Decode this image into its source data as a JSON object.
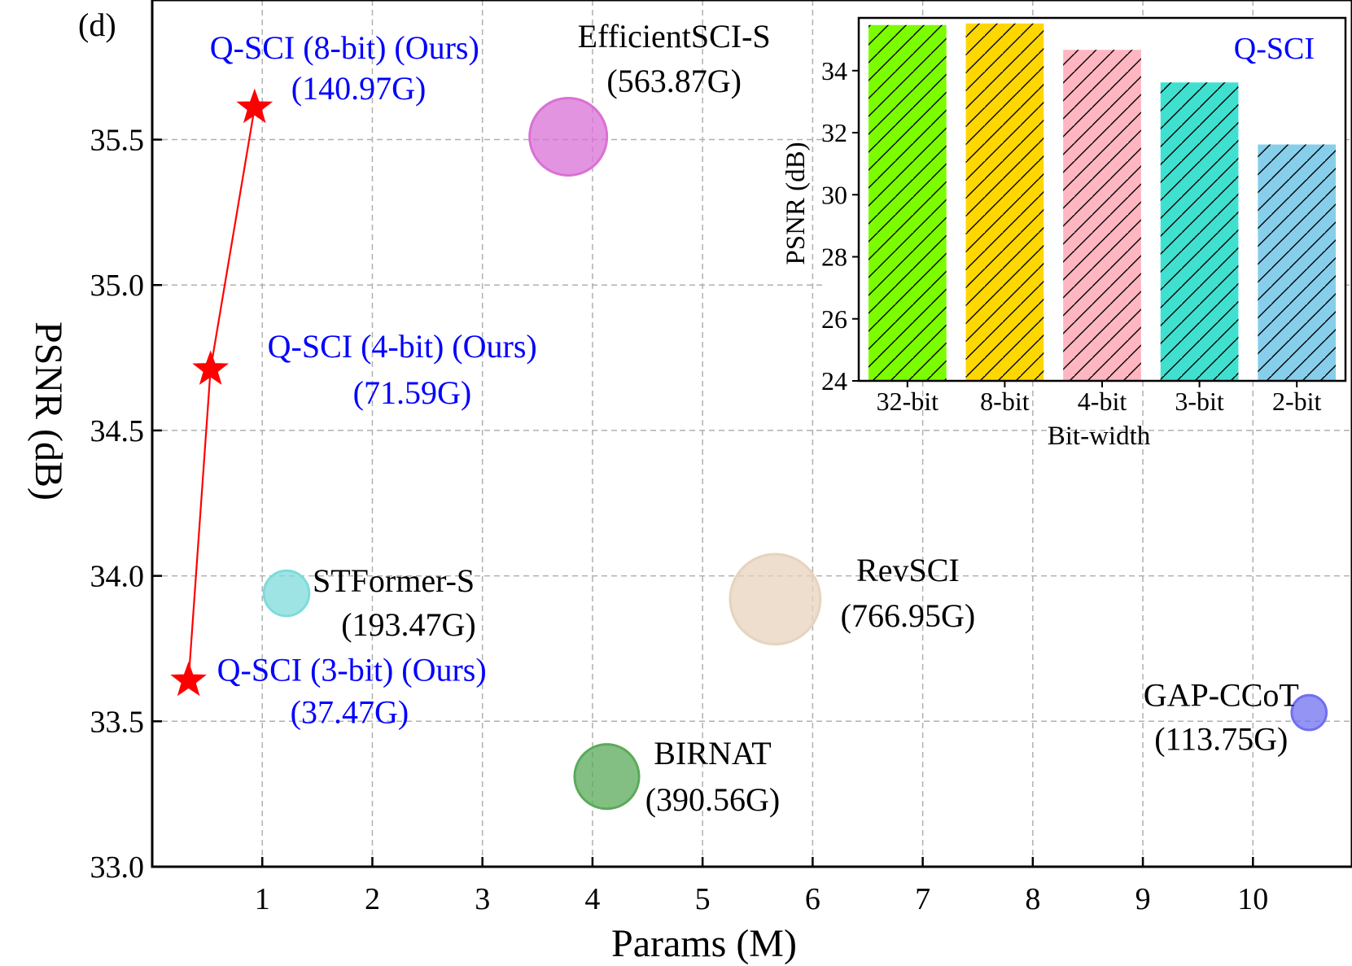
{
  "chart_data": [
    {
      "type": "scatter",
      "panel_label": "(d)",
      "xlabel": "Params (M)",
      "ylabel": "PSNR (dB)",
      "xlim": [
        0,
        10.9
      ],
      "ylim": [
        33.0,
        35.98
      ],
      "xticks": [
        1,
        2,
        3,
        4,
        5,
        6,
        7,
        8,
        9,
        10
      ],
      "yticks": [
        33.0,
        33.5,
        34.0,
        34.5,
        35.0,
        35.5
      ],
      "ytick_labels": [
        "33.0",
        "33.5",
        "34.0",
        "34.5",
        "35.0",
        "35.5"
      ],
      "grid": true,
      "series": [
        {
          "marker": "star",
          "color": "#ff0000",
          "connected": true,
          "points": [
            {
              "x": 0.33,
              "y": 33.64,
              "label": "Q-SCI (3-bit) (Ours)",
              "flops": "(37.47G)"
            },
            {
              "x": 0.53,
              "y": 34.71,
              "label": "Q-SCI (4-bit) (Ours)",
              "flops": "(71.59G)"
            },
            {
              "x": 0.93,
              "y": 35.61,
              "label": "Q-SCI (8-bit) (Ours)",
              "flops": "(140.97G)"
            }
          ],
          "label_color": "#0000ff"
        },
        {
          "marker": "bubble",
          "points": [
            {
              "x": 3.78,
              "y": 35.51,
              "label": "EfficientSCI-S",
              "flops": "(563.87G)",
              "gflops": 563.87,
              "color": "#da70d6"
            },
            {
              "x": 1.22,
              "y": 33.94,
              "label": "STFormer-S",
              "flops": "(193.47G)",
              "gflops": 193.47,
              "color": "#7fdbdb"
            },
            {
              "x": 5.66,
              "y": 33.92,
              "label": "RevSCI",
              "flops": "(766.95G)",
              "gflops": 766.95,
              "color": "#e7d3be"
            },
            {
              "x": 4.13,
              "y": 33.31,
              "label": "BIRNAT",
              "flops": "(390.56G)",
              "gflops": 390.56,
              "color": "#5aaa5a"
            },
            {
              "x": 10.51,
              "y": 33.53,
              "label": "GAP-CCoT",
              "flops": "(113.75G)",
              "gflops": 113.75,
              "color": "#7070f0"
            }
          ],
          "label_color": "#000000"
        }
      ]
    },
    {
      "type": "bar",
      "title": "Q-SCI",
      "xlabel": "Bit-width",
      "ylabel": "PSNR (dB)",
      "ylim": [
        24,
        35.7
      ],
      "yticks": [
        24,
        26,
        28,
        30,
        32,
        34
      ],
      "categories": [
        "32-bit",
        "8-bit",
        "4-bit",
        "3-bit",
        "2-bit"
      ],
      "values": [
        35.47,
        35.52,
        34.67,
        33.62,
        31.62
      ],
      "colors": [
        "#7cfc00",
        "#ffd700",
        "#ffb6c1",
        "#40e0d0",
        "#87ceeb"
      ],
      "hatch": "diagonal"
    }
  ]
}
